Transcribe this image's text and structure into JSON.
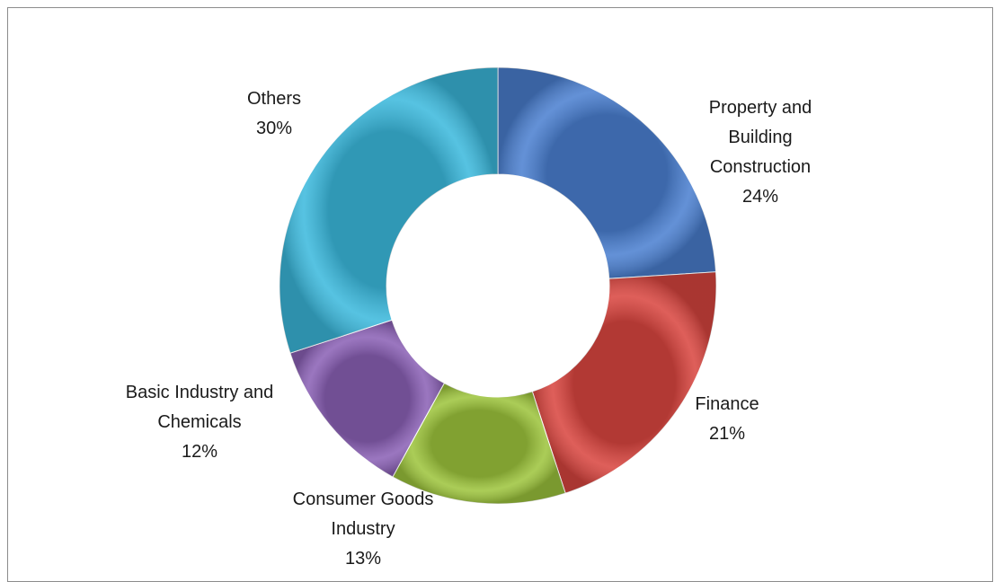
{
  "chart_data": {
    "type": "pie",
    "variant": "doughnut",
    "start_angle_deg": 0,
    "direction": "clockwise",
    "slices": [
      {
        "label_lines": [
          "Property and",
          "Building",
          "Construction"
        ],
        "percent_label": "24%",
        "value": 24,
        "color": "#4a7fd0"
      },
      {
        "label_lines": [
          "Finance"
        ],
        "percent_label": "21%",
        "value": 21,
        "color": "#d9453f"
      },
      {
        "label_lines": [
          "Consumer Goods",
          "Industry"
        ],
        "percent_label": "13%",
        "value": 13,
        "color": "#9dc43c"
      },
      {
        "label_lines": [
          "Basic Industry and",
          "Chemicals"
        ],
        "percent_label": "12%",
        "value": 12,
        "color": "#8a60b5"
      },
      {
        "label_lines": [
          "Others"
        ],
        "percent_label": "30%",
        "value": 30,
        "color": "#3bb9dd"
      }
    ]
  }
}
